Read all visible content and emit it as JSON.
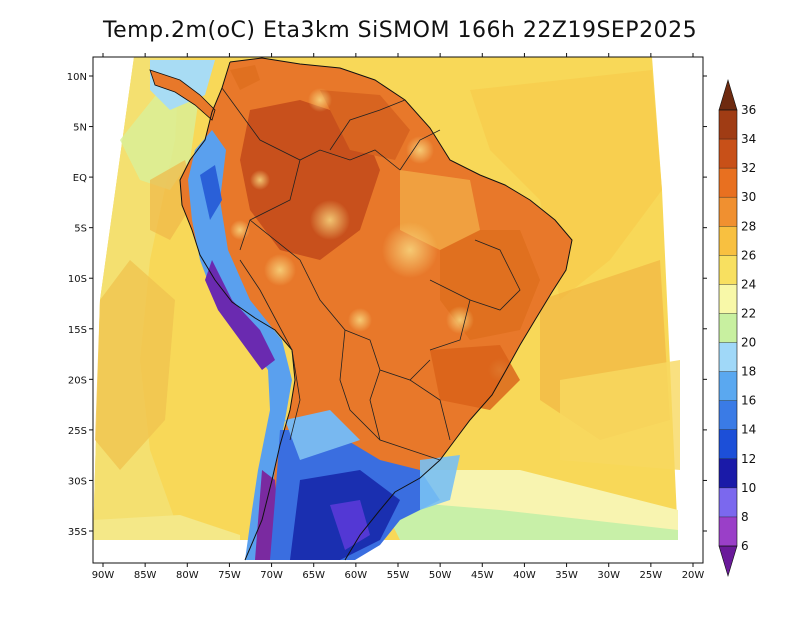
{
  "title": "Temp.2m(oC) Eta3km SiSMOM 166h 22Z19SEP2025",
  "map": {
    "lon_range": [
      -90,
      -20
    ],
    "lat_range": [
      -38,
      12
    ],
    "lon_labels": [
      "90W",
      "85W",
      "80W",
      "75W",
      "70W",
      "65W",
      "60W",
      "55W",
      "50W",
      "45W",
      "40W",
      "35W",
      "30W",
      "25W",
      "20W"
    ],
    "lat_labels": [
      "10N",
      "5N",
      "EQ",
      "5S",
      "10S",
      "15S",
      "20S",
      "25S",
      "30S",
      "35S"
    ],
    "lat_values": [
      10,
      5,
      0,
      -5,
      -10,
      -15,
      -20,
      -25,
      -30,
      -35
    ]
  },
  "colorbar": {
    "labels": [
      "6",
      "8",
      "10",
      "12",
      "14",
      "16",
      "18",
      "20",
      "22",
      "24",
      "26",
      "28",
      "30",
      "32",
      "34",
      "36"
    ],
    "colors": [
      "#6a1a9a",
      "#9a3fc8",
      "#7b68ee",
      "#1a1aa8",
      "#1c4fd8",
      "#3a7be6",
      "#5aa8f0",
      "#a0d8f8",
      "#c8f0a0",
      "#f8f8a8",
      "#f8e060",
      "#f8c040",
      "#f09030",
      "#e87020",
      "#c85018",
      "#a03c14",
      "#6e2a10"
    ]
  }
}
